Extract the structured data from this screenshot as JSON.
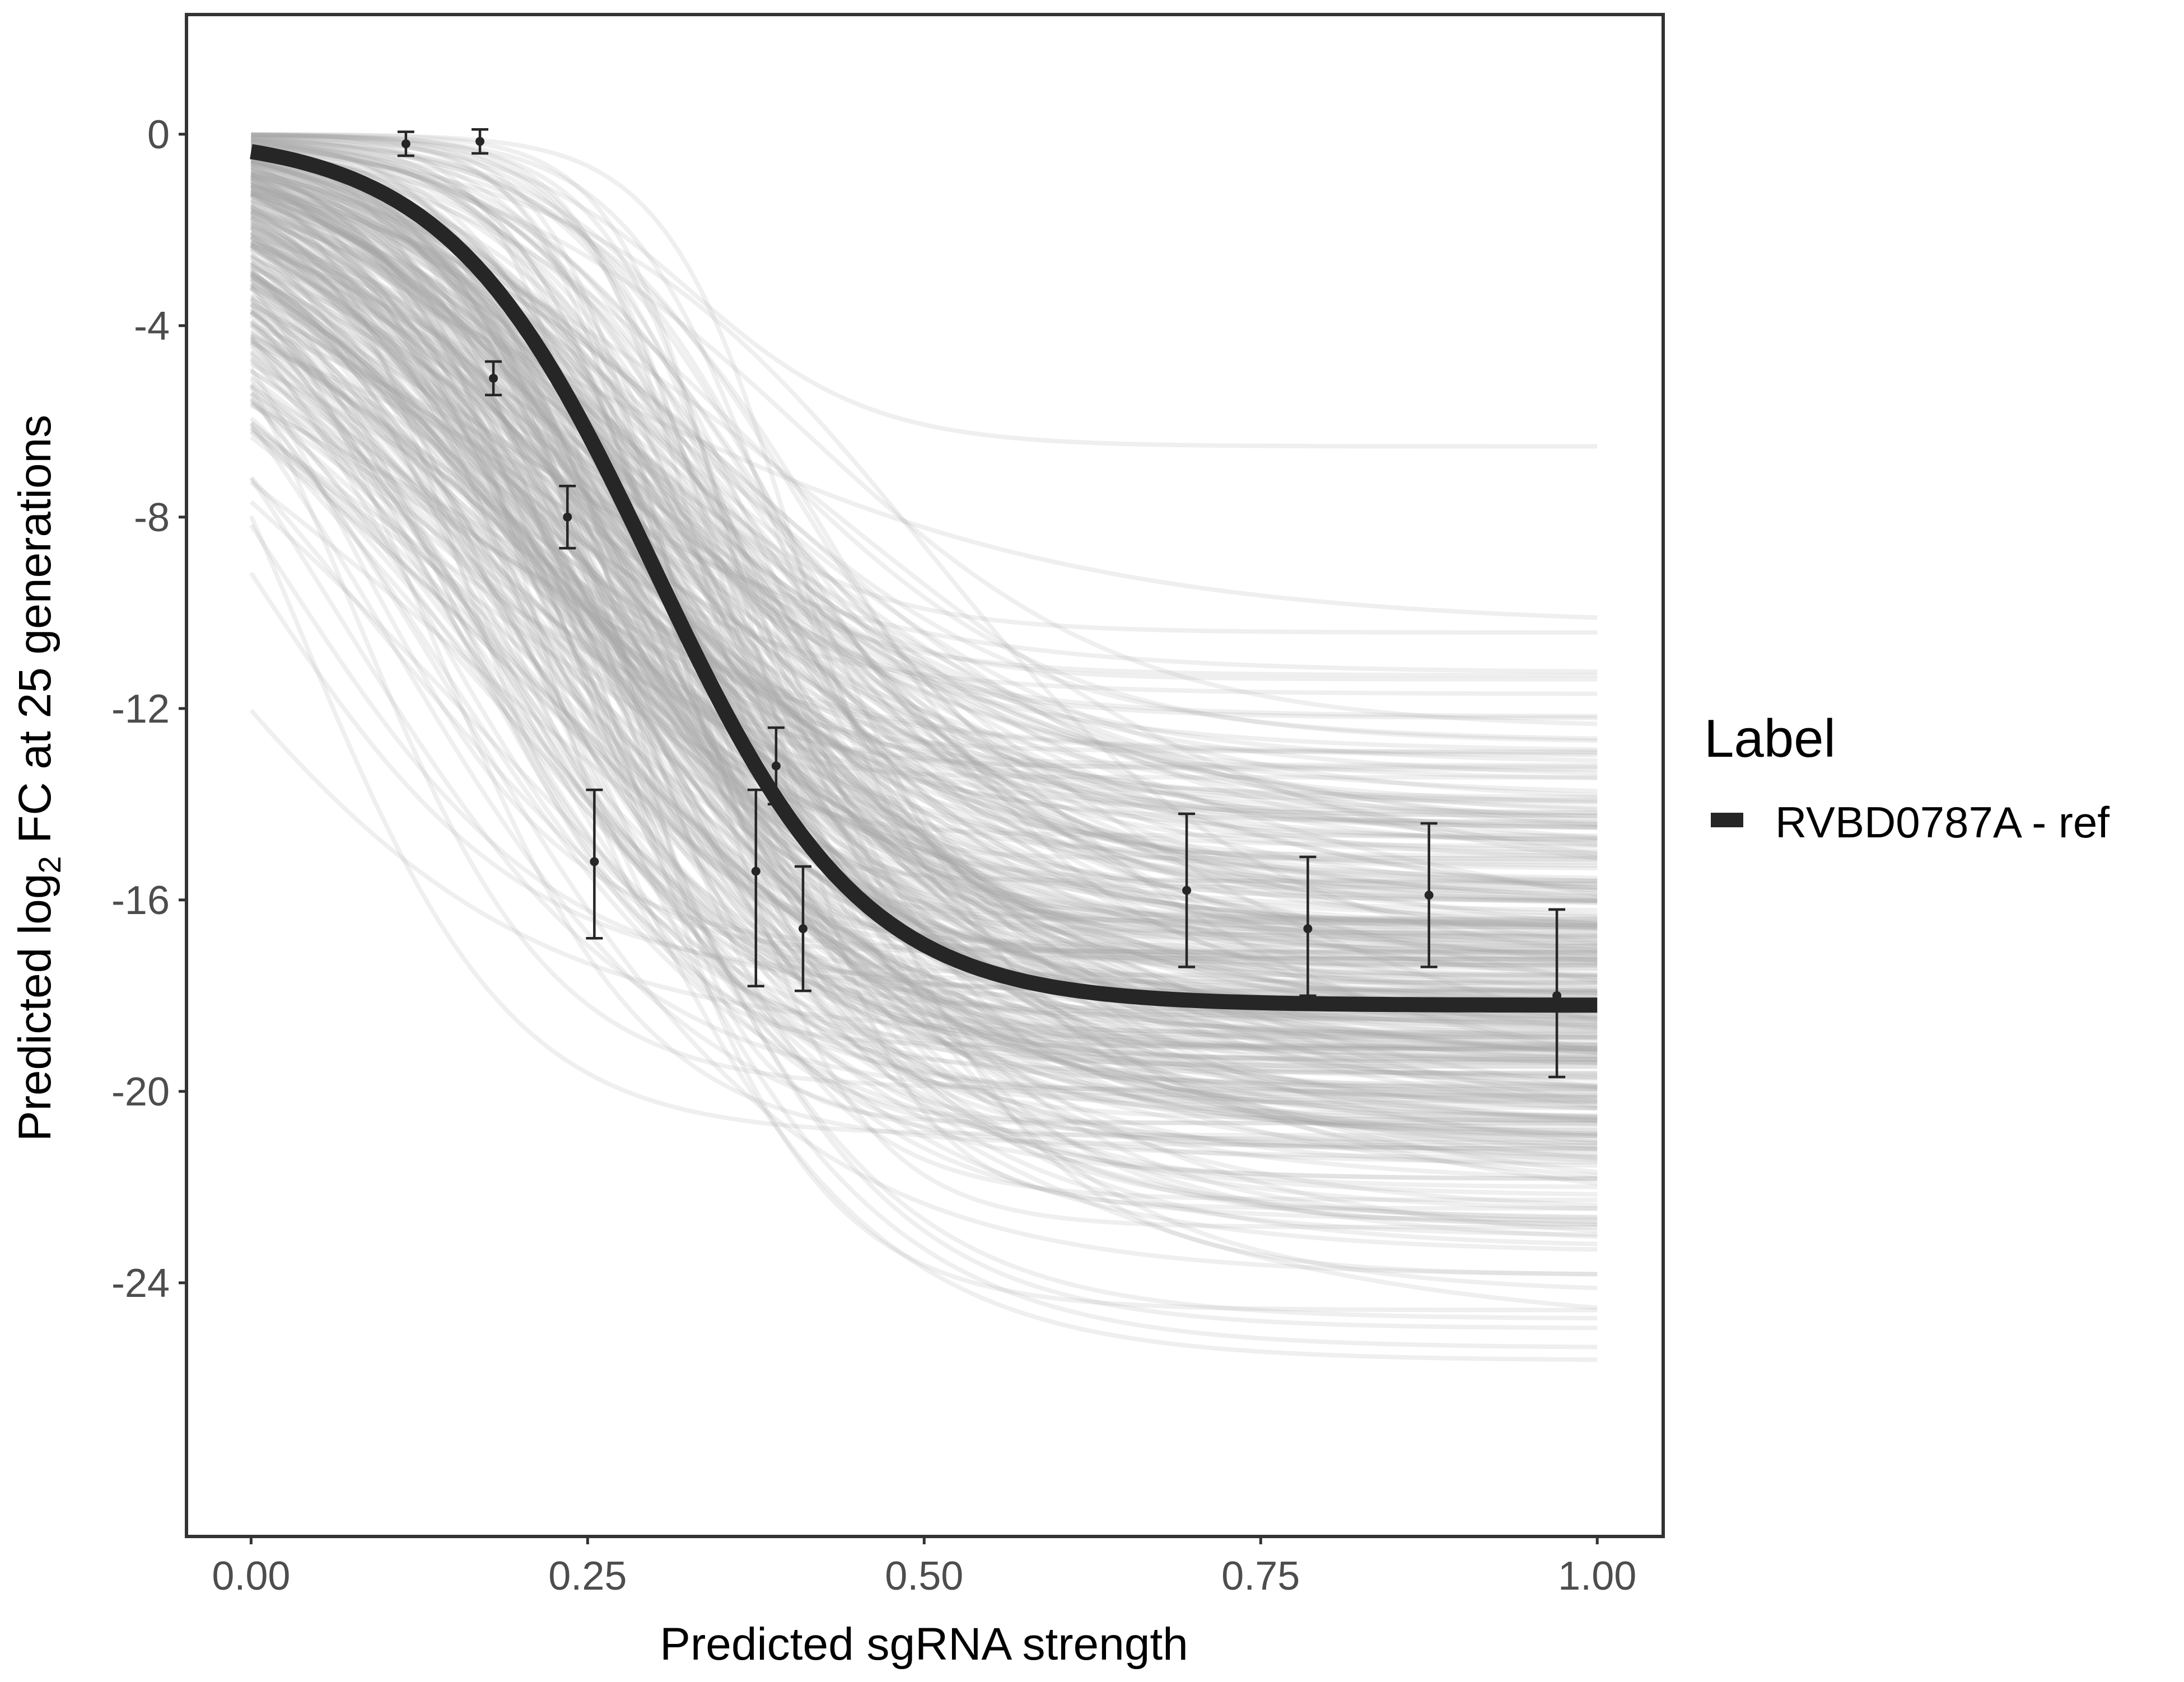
{
  "chart_data": {
    "type": "line",
    "title": "",
    "xlabel": "Predicted sgRNA strength",
    "ylabel_pre": "Predicted  log",
    "ylabel_sub": "2",
    "ylabel_post": " FC at 25 generations",
    "xlim": [
      -0.048,
      1.049
    ],
    "ylim": [
      -29.3,
      2.5
    ],
    "x_ticks": [
      0,
      0.25,
      0.5,
      0.75,
      1.0
    ],
    "x_tick_labels": [
      "0.00",
      "0.25",
      "0.50",
      "0.75",
      "1.00"
    ],
    "y_ticks": [
      0,
      -4,
      -8,
      -12,
      -16,
      -20,
      -24
    ],
    "y_tick_labels": [
      "0",
      "-4",
      "-8",
      "-12",
      "-16",
      "-20",
      "-24"
    ],
    "grid": false,
    "legend": {
      "title": "Label",
      "placement": "right",
      "entries": [
        {
          "label": "RVBD0787A - ref",
          "color": "#262626"
        }
      ]
    },
    "fit_curve": {
      "name": "RVBD0787A - ref",
      "form": "logistic",
      "asymptote": -18.2,
      "midpoint": 0.3,
      "scale": 0.077,
      "color": "#262626"
    },
    "ensemble": {
      "count": 350,
      "color": "#a6a6a6",
      "opacity": 0.18
    },
    "points": [
      {
        "x": 0.115,
        "y": -0.2,
        "ymin": -0.45,
        "ymax": 0.05
      },
      {
        "x": 0.17,
        "y": -0.15,
        "ymin": -0.4,
        "ymax": 0.1
      },
      {
        "x": 0.18,
        "y": -5.1,
        "ymin": -5.45,
        "ymax": -4.75
      },
      {
        "x": 0.235,
        "y": -8.0,
        "ymin": -8.65,
        "ymax": -7.35
      },
      {
        "x": 0.255,
        "y": -15.2,
        "ymin": -16.8,
        "ymax": -13.7
      },
      {
        "x": 0.375,
        "y": -15.4,
        "ymin": -17.8,
        "ymax": -13.7
      },
      {
        "x": 0.39,
        "y": -13.2,
        "ymin": -14.0,
        "ymax": -12.4
      },
      {
        "x": 0.41,
        "y": -16.6,
        "ymin": -17.9,
        "ymax": -15.3
      },
      {
        "x": 0.695,
        "y": -15.8,
        "ymin": -17.4,
        "ymax": -14.2
      },
      {
        "x": 0.785,
        "y": -16.6,
        "ymin": -18.0,
        "ymax": -15.1
      },
      {
        "x": 0.875,
        "y": -15.9,
        "ymin": -17.4,
        "ymax": -14.4
      },
      {
        "x": 0.97,
        "y": -18.0,
        "ymin": -19.7,
        "ymax": -16.2
      }
    ]
  }
}
